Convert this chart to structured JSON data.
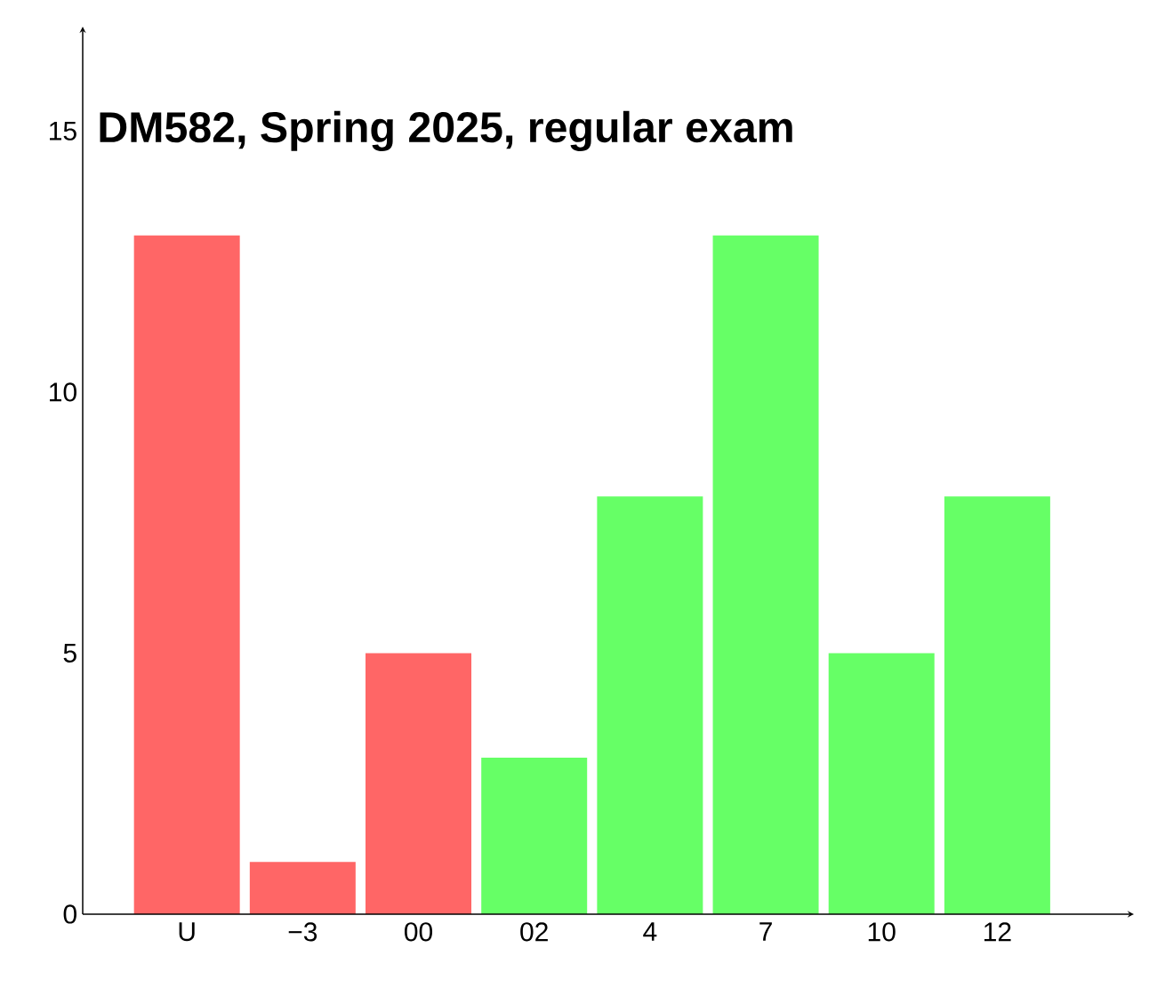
{
  "chart_data": {
    "type": "bar",
    "title": "DM582, Spring 2025, regular exam",
    "categories": [
      "U",
      "−3",
      "00",
      "02",
      "4",
      "7",
      "10",
      "12"
    ],
    "values": [
      13,
      1,
      5,
      3,
      8,
      13,
      5,
      8
    ],
    "colors": [
      "#ff6666",
      "#ff6666",
      "#ff6666",
      "#66ff66",
      "#66ff66",
      "#66ff66",
      "#66ff66",
      "#66ff66"
    ],
    "ylim": [
      0,
      17
    ],
    "yticks": [
      0,
      5,
      10,
      15
    ]
  }
}
